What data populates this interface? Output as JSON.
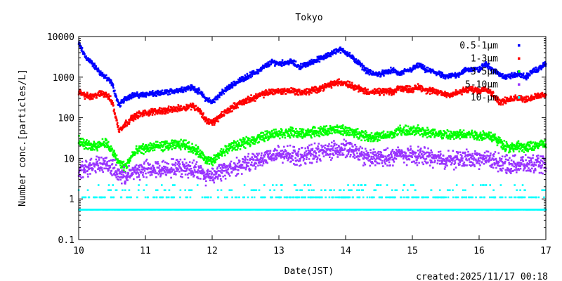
{
  "chart_data": {
    "type": "scatter",
    "title": "Tokyo",
    "xlabel": "Date(JST)",
    "ylabel": "Number conc.[particles/L]",
    "yscale": "log",
    "xlim": [
      10,
      17
    ],
    "ylim": [
      0.1,
      10000
    ],
    "xticks": [
      "10",
      "11",
      "12",
      "13",
      "14",
      "15",
      "16",
      "17"
    ],
    "yticks": [
      "0.1",
      "1",
      "10",
      "100",
      "1000",
      "10000"
    ],
    "legend_position": "top-right",
    "footer": "created:2025/11/17 00:18",
    "x": [
      10.0,
      10.1,
      10.2,
      10.3,
      10.4,
      10.5,
      10.6,
      10.7,
      10.8,
      10.9,
      11.0,
      11.1,
      11.2,
      11.3,
      11.4,
      11.5,
      11.6,
      11.7,
      11.8,
      11.9,
      12.0,
      12.1,
      12.2,
      12.3,
      12.4,
      12.5,
      12.6,
      12.7,
      12.8,
      12.9,
      13.0,
      13.1,
      13.2,
      13.3,
      13.4,
      13.5,
      13.6,
      13.7,
      13.8,
      13.9,
      14.0,
      14.1,
      14.2,
      14.3,
      14.4,
      14.5,
      14.6,
      14.7,
      14.8,
      14.9,
      15.0,
      15.1,
      15.2,
      15.3,
      15.4,
      15.5,
      15.6,
      15.7,
      15.8,
      15.9,
      16.0,
      16.1,
      16.2,
      16.3,
      16.4,
      16.5,
      16.6,
      16.7,
      16.8,
      16.9,
      17.0
    ],
    "series": [
      {
        "name": "0.5-1μm",
        "color": "#0000ff",
        "values": [
          6600,
          3200,
          2200,
          1400,
          1000,
          700,
          200,
          300,
          360,
          360,
          380,
          390,
          390,
          420,
          450,
          480,
          530,
          560,
          450,
          300,
          240,
          360,
          480,
          650,
          800,
          1000,
          1200,
          1450,
          1900,
          2350,
          2200,
          2300,
          2400,
          1800,
          2000,
          2400,
          2800,
          3200,
          4000,
          4800,
          4200,
          3000,
          2200,
          1500,
          1200,
          1200,
          1300,
          1500,
          1200,
          1400,
          1600,
          2000,
          1500,
          1400,
          1200,
          1000,
          1100,
          1200,
          1500,
          1600,
          1500,
          2200,
          1500,
          1200,
          1000,
          1100,
          1200,
          1000,
          1400,
          1600,
          2200
        ]
      },
      {
        "name": "1-3μm",
        "color": "#ff0000",
        "values": [
          450,
          350,
          320,
          380,
          400,
          250,
          50,
          70,
          100,
          120,
          130,
          140,
          150,
          150,
          160,
          170,
          180,
          200,
          160,
          90,
          75,
          100,
          140,
          180,
          220,
          260,
          300,
          350,
          400,
          450,
          450,
          460,
          470,
          420,
          430,
          470,
          520,
          600,
          680,
          750,
          720,
          620,
          520,
          450,
          430,
          430,
          450,
          420,
          550,
          520,
          500,
          580,
          480,
          450,
          420,
          380,
          380,
          420,
          480,
          500,
          450,
          550,
          380,
          250,
          260,
          300,
          320,
          280,
          320,
          340,
          380
        ]
      },
      {
        "name": "3-5μm",
        "color": "#00ff00",
        "values": [
          27,
          22,
          20,
          22,
          25,
          15,
          8,
          6,
          12,
          16,
          18,
          19,
          20,
          20,
          21,
          22,
          22,
          18,
          14,
          10,
          8,
          12,
          16,
          20,
          22,
          24,
          28,
          32,
          36,
          40,
          42,
          42,
          44,
          40,
          42,
          44,
          46,
          48,
          50,
          50,
          48,
          44,
          40,
          36,
          34,
          34,
          36,
          38,
          50,
          48,
          46,
          50,
          44,
          42,
          40,
          38,
          36,
          38,
          40,
          40,
          36,
          38,
          34,
          26,
          20,
          18,
          20,
          18,
          20,
          22,
          22
        ]
      },
      {
        "name": "5-10μm",
        "color": "#9933ff",
        "values": [
          4.5,
          5.5,
          7,
          8,
          7,
          6,
          4,
          3.5,
          4.5,
          5,
          5.5,
          5.5,
          5.5,
          5.5,
          5.8,
          6,
          6,
          5.5,
          5,
          3.7,
          4,
          4.5,
          5,
          6,
          6.5,
          7,
          8,
          9.5,
          11,
          12,
          12,
          12.5,
          13,
          11,
          12,
          13,
          14,
          15,
          16,
          17,
          17,
          15,
          13,
          11,
          10,
          10,
          10.5,
          11,
          13,
          12,
          11,
          12,
          11,
          10.5,
          10,
          9.5,
          9,
          9.5,
          10,
          10,
          9,
          10,
          9,
          8,
          7,
          7,
          7.5,
          7,
          7,
          7,
          7
        ]
      },
      {
        "name": "10-μm",
        "color": "#00ffff",
        "values": [
          0.55,
          0.55,
          0.55,
          0.55,
          0.55,
          0.55,
          0.55,
          0.55,
          0.55,
          0.55,
          0.55,
          0.55,
          0.55,
          0.55,
          0.55,
          0.55,
          0.55,
          0.55,
          0.55,
          0.55,
          0.55,
          0.55,
          0.55,
          0.55,
          0.55,
          0.55,
          0.55,
          0.55,
          0.55,
          0.55,
          0.55,
          0.55,
          0.55,
          0.55,
          0.55,
          0.55,
          0.55,
          0.55,
          0.55,
          0.55,
          0.55,
          0.55,
          0.55,
          0.55,
          0.55,
          0.55,
          0.55,
          0.55,
          0.55,
          0.55,
          0.55,
          0.55,
          0.55,
          0.55,
          0.55,
          0.55,
          0.55,
          0.55,
          0.55,
          0.55,
          0.55,
          0.55,
          0.55,
          0.55,
          0.55,
          0.55,
          0.55,
          0.55,
          0.55,
          0.55,
          0.55
        ]
      }
    ]
  }
}
